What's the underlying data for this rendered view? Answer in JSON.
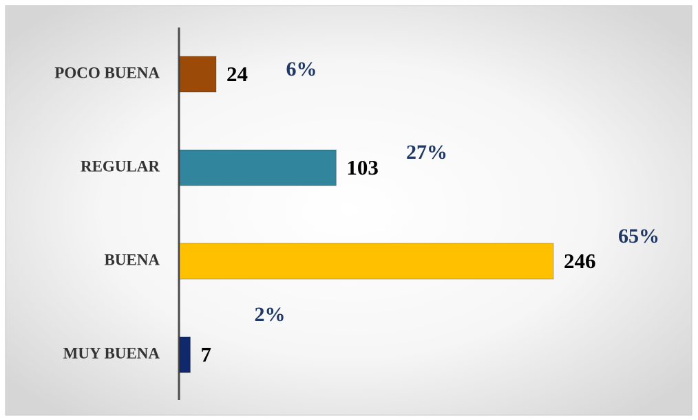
{
  "chart_data": {
    "type": "hbar",
    "categories": [
      "POCO BUENA",
      "REGULAR",
      "BUENA",
      "MUY BUENA"
    ],
    "values": [
      24,
      103,
      246,
      7
    ],
    "colors": [
      "#9c4a08",
      "#31859c",
      "#ffc000",
      "#10296c"
    ],
    "percentages": [
      6,
      27,
      65,
      2
    ],
    "percentage_labels": [
      "6%",
      "27%",
      "65%",
      "2%"
    ]
  }
}
